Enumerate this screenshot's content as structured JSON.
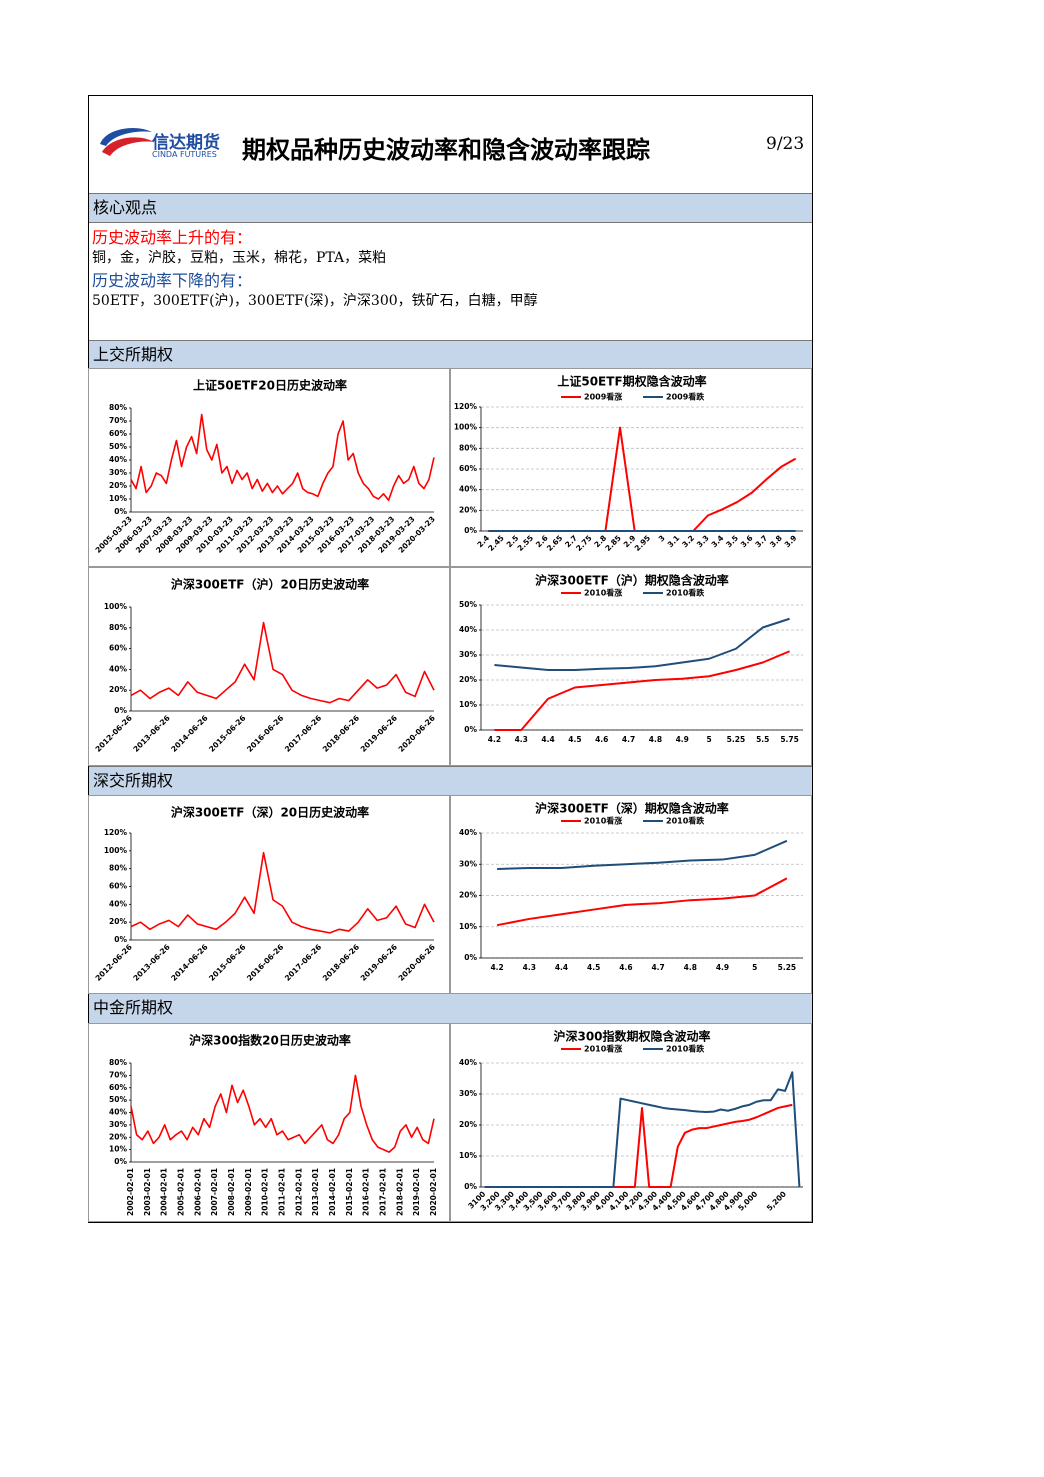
{
  "header": {
    "logo_cn": "信达期货",
    "logo_en": "CINDA FUTURES",
    "title": "期权品种历史波动率和隐含波动率跟踪",
    "page": "9/23"
  },
  "core": {
    "heading": "核心观点",
    "up_label": "历史波动率上升的有：",
    "up_items": "铜，金，沪胶，豆粕，玉米，棉花，PTA，菜粕",
    "down_label": "历史波动率下降的有：",
    "down_items": "50ETF，300ETF(沪)，300ETF(深)，沪深300，铁矿石，白糖，甲醇"
  },
  "sections": [
    "上交所期权",
    "深交所期权",
    "中金所期权"
  ],
  "chart_data": [
    {
      "type": "line",
      "title": "上证50ETF20日历史波动率",
      "color": "#ff0000",
      "categories": [
        "2005-03-23",
        null,
        null,
        null,
        "2006-03-23",
        null,
        null,
        null,
        "2007-03-23",
        null,
        null,
        null,
        "2008-03-23",
        null,
        null,
        null,
        "2009-03-23",
        null,
        null,
        null,
        "2010-03-23",
        null,
        null,
        null,
        "2011-03-23",
        null,
        null,
        null,
        "2012-03-23",
        null,
        null,
        null,
        "2013-03-23",
        null,
        null,
        null,
        "2014-03-23",
        null,
        null,
        null,
        "2015-03-23",
        null,
        null,
        null,
        "2016-03-23",
        null,
        null,
        null,
        "2017-03-23",
        null,
        null,
        null,
        "2018-03-23",
        null,
        null,
        null,
        "2019-03-23",
        null,
        null,
        null,
        "2020-03-23"
      ],
      "values": [
        25,
        18,
        35,
        15,
        20,
        30,
        28,
        22,
        40,
        55,
        35,
        50,
        58,
        45,
        75,
        48,
        40,
        52,
        30,
        35,
        22,
        32,
        25,
        30,
        18,
        25,
        16,
        22,
        15,
        20,
        14,
        18,
        22,
        30,
        18,
        15,
        14,
        12,
        22,
        30,
        35,
        60,
        70,
        40,
        45,
        30,
        22,
        18,
        12,
        10,
        14,
        9,
        20,
        28,
        22,
        25,
        35,
        22,
        18,
        25,
        42
      ],
      "ylim": [
        0,
        80
      ],
      "yticks": [
        {
          "value": 0,
          "label": "0%"
        },
        {
          "value": 10,
          "label": "10%"
        },
        {
          "value": 20,
          "label": "20%"
        },
        {
          "value": 30,
          "label": "30%"
        },
        {
          "value": 40,
          "label": "40%"
        },
        {
          "value": 50,
          "label": "50%"
        },
        {
          "value": 60,
          "label": "60%"
        },
        {
          "value": 70,
          "label": "70%"
        },
        {
          "value": 80,
          "label": "80%"
        }
      ],
      "grid": false
    },
    {
      "type": "line",
      "title": "上证50ETF期权隐含波动率",
      "categories": [
        "2.4",
        "2.45",
        "2.5",
        "2.55",
        "2.6",
        "2.65",
        "2.7",
        "2.75",
        "2.8",
        "2.85",
        "2.9",
        "2.95",
        "3",
        "3.1",
        "3.2",
        "3.3",
        "3.4",
        "3.5",
        "3.6",
        "3.7",
        "3.8",
        "3.9"
      ],
      "series": [
        {
          "name": "2009看涨",
          "color": "#ff0000",
          "values": [
            0,
            0,
            0,
            0,
            0,
            0,
            0,
            0,
            0,
            100,
            0,
            0,
            0,
            0,
            0,
            15,
            21,
            28,
            37,
            50,
            62,
            70
          ]
        },
        {
          "name": "2009看跌",
          "color": "#1f4e79",
          "values": [
            0,
            0,
            0,
            0,
            0,
            0,
            0,
            0,
            0,
            0,
            0,
            0,
            0,
            0,
            0,
            0,
            0,
            0,
            0,
            0,
            0,
            0
          ]
        }
      ],
      "ylim": [
        0,
        120
      ],
      "yticks": [
        {
          "value": 0,
          "label": "0%"
        },
        {
          "value": 20,
          "label": "20%"
        },
        {
          "value": 40,
          "label": "40%"
        },
        {
          "value": 60,
          "label": "60%"
        },
        {
          "value": 80,
          "label": "80%"
        },
        {
          "value": 100,
          "label": "100%"
        },
        {
          "value": 120,
          "label": "120%"
        }
      ],
      "grid": true,
      "legend": "top"
    },
    {
      "type": "line",
      "title": "沪深300ETF（沪）20日历史波动率",
      "color": "#ff0000",
      "categories": [
        "2012-06-26",
        null,
        null,
        null,
        "2013-06-26",
        null,
        null,
        null,
        "2014-06-26",
        null,
        null,
        null,
        "2015-06-26",
        null,
        null,
        null,
        "2016-06-26",
        null,
        null,
        null,
        "2017-06-26",
        null,
        null,
        null,
        "2018-06-26",
        null,
        null,
        null,
        "2019-06-26",
        null,
        null,
        null,
        "2020-06-26"
      ],
      "values": [
        15,
        20,
        12,
        18,
        22,
        15,
        28,
        18,
        15,
        12,
        20,
        28,
        45,
        30,
        85,
        40,
        35,
        20,
        15,
        12,
        10,
        8,
        12,
        10,
        20,
        30,
        22,
        25,
        35,
        18,
        14,
        38,
        20
      ],
      "ylim": [
        0,
        100
      ],
      "yticks": [
        {
          "value": 0,
          "label": "0%"
        },
        {
          "value": 20,
          "label": "20%"
        },
        {
          "value": 40,
          "label": "40%"
        },
        {
          "value": 60,
          "label": "60%"
        },
        {
          "value": 80,
          "label": "80%"
        },
        {
          "value": 100,
          "label": "100%"
        }
      ],
      "grid": false
    },
    {
      "type": "line",
      "title": "沪深300ETF（沪）期权隐含波动率",
      "categories": [
        "4.2",
        "4.3",
        "4.4",
        "4.5",
        "4.6",
        "4.7",
        "4.8",
        "4.9",
        "5",
        "5.25",
        "5.5",
        "5.75"
      ],
      "series": [
        {
          "name": "2010看涨",
          "color": "#ff0000",
          "values": [
            0,
            0,
            12.5,
            17,
            18,
            19,
            20,
            20.5,
            21.5,
            24,
            27,
            31.5
          ]
        },
        {
          "name": "2010看跌",
          "color": "#1f4e79",
          "values": [
            26,
            25,
            24,
            24,
            24.5,
            24.8,
            25.5,
            27,
            28.5,
            32.5,
            41,
            44.5
          ]
        }
      ],
      "ylim": [
        0,
        50
      ],
      "yticks": [
        {
          "value": 0,
          "label": "0%"
        },
        {
          "value": 10,
          "label": "10%"
        },
        {
          "value": 20,
          "label": "20%"
        },
        {
          "value": 30,
          "label": "30%"
        },
        {
          "value": 40,
          "label": "40%"
        },
        {
          "value": 50,
          "label": "50%"
        }
      ],
      "grid": true,
      "legend": "top"
    },
    {
      "type": "line",
      "title": "沪深300ETF（深）20日历史波动率",
      "color": "#ff0000",
      "categories": [
        "2012-06-26",
        null,
        null,
        null,
        "2013-06-26",
        null,
        null,
        null,
        "2014-06-26",
        null,
        null,
        null,
        "2015-06-26",
        null,
        null,
        null,
        "2016-06-26",
        null,
        null,
        null,
        "2017-06-26",
        null,
        null,
        null,
        "2018-06-26",
        null,
        null,
        null,
        "2019-06-26",
        null,
        null,
        null,
        "2020-06-26"
      ],
      "values": [
        15,
        20,
        12,
        18,
        22,
        15,
        28,
        18,
        15,
        12,
        20,
        30,
        48,
        30,
        98,
        45,
        38,
        20,
        15,
        12,
        10,
        8,
        12,
        10,
        20,
        35,
        22,
        25,
        38,
        18,
        14,
        40,
        20
      ],
      "ylim": [
        0,
        120
      ],
      "yticks": [
        {
          "value": 0,
          "label": "0%"
        },
        {
          "value": 20,
          "label": "20%"
        },
        {
          "value": 40,
          "label": "40%"
        },
        {
          "value": 60,
          "label": "60%"
        },
        {
          "value": 80,
          "label": "80%"
        },
        {
          "value": 100,
          "label": "100%"
        },
        {
          "value": 120,
          "label": "120%"
        }
      ],
      "grid": false
    },
    {
      "type": "line",
      "title": "沪深300ETF（深）期权隐含波动率",
      "categories": [
        "4.2",
        "4.3",
        "4.4",
        "4.5",
        "4.6",
        "4.7",
        "4.8",
        "4.9",
        "5",
        "5.25"
      ],
      "series": [
        {
          "name": "2010看涨",
          "color": "#ff0000",
          "values": [
            10.5,
            12.5,
            14,
            15.5,
            17,
            17.5,
            18.5,
            19,
            20,
            25.5
          ]
        },
        {
          "name": "2010看跌",
          "color": "#1f4e79",
          "values": [
            28.5,
            28.8,
            28.8,
            29.5,
            30,
            30.5,
            31.2,
            31.5,
            33,
            37.5
          ]
        }
      ],
      "ylim": [
        0,
        40
      ],
      "yticks": [
        {
          "value": 0,
          "label": "0%"
        },
        {
          "value": 10,
          "label": "10%"
        },
        {
          "value": 20,
          "label": "20%"
        },
        {
          "value": 30,
          "label": "30%"
        },
        {
          "value": 40,
          "label": "40%"
        }
      ],
      "grid": true,
      "legend": "top"
    },
    {
      "type": "line",
      "title": "沪深300指数20日历史波动率",
      "color": "#ff0000",
      "categories": [
        "2002-02-01",
        null,
        null,
        "2003-02-01",
        null,
        null,
        "2004-02-01",
        null,
        null,
        "2005-02-01",
        null,
        null,
        "2006-02-01",
        null,
        null,
        "2007-02-01",
        null,
        null,
        "2008-02-01",
        null,
        null,
        "2009-02-01",
        null,
        null,
        "2010-02-01",
        null,
        null,
        "2011-02-01",
        null,
        null,
        "2012-02-01",
        null,
        null,
        "2013-02-01",
        null,
        null,
        "2014-02-01",
        null,
        null,
        "2015-02-01",
        null,
        null,
        "2016-02-01",
        null,
        null,
        "2017-02-01",
        null,
        null,
        "2018-02-01",
        null,
        null,
        "2019-02-01",
        null,
        null,
        "2020-02-01"
      ],
      "values": [
        45,
        22,
        18,
        25,
        15,
        20,
        30,
        18,
        22,
        25,
        18,
        28,
        22,
        35,
        28,
        45,
        55,
        40,
        62,
        48,
        58,
        45,
        30,
        35,
        28,
        35,
        22,
        25,
        18,
        20,
        22,
        15,
        20,
        25,
        30,
        18,
        15,
        22,
        35,
        40,
        70,
        45,
        30,
        18,
        12,
        10,
        8,
        12,
        25,
        30,
        20,
        28,
        18,
        15,
        35
      ],
      "ylim": [
        0,
        80
      ],
      "yticks": [
        {
          "value": 0,
          "label": "0%"
        },
        {
          "value": 10,
          "label": "10%"
        },
        {
          "value": 20,
          "label": "20%"
        },
        {
          "value": 30,
          "label": "30%"
        },
        {
          "value": 40,
          "label": "40%"
        },
        {
          "value": 50,
          "label": "50%"
        },
        {
          "value": 60,
          "label": "60%"
        },
        {
          "value": 70,
          "label": "70%"
        },
        {
          "value": 80,
          "label": "80%"
        }
      ],
      "grid": false
    },
    {
      "type": "line",
      "title": "沪深300指数期权隐含波动率",
      "categories": [
        "3100",
        null,
        "3,200",
        null,
        "3,300",
        null,
        "3,400",
        null,
        "3,500",
        null,
        "3,600",
        null,
        "3,700",
        null,
        "3,800",
        null,
        "3,900",
        null,
        "4,000",
        null,
        "4,100",
        null,
        "4,200",
        null,
        "4,300",
        null,
        "4,400",
        null,
        "4,500",
        null,
        "4,600",
        null,
        "4,700",
        null,
        "4,800",
        null,
        "4,900",
        null,
        "5,000",
        null,
        null,
        null,
        "5,200",
        null,
        null
      ],
      "series": [
        {
          "name": "2010看涨",
          "color": "#ff0000",
          "values": [
            0,
            0,
            0,
            0,
            0,
            0,
            0,
            0,
            0,
            0,
            0,
            0,
            0,
            0,
            0,
            0,
            0,
            0,
            0,
            0,
            0,
            0,
            25.5,
            0,
            0,
            0,
            0,
            13,
            17.5,
            18.5,
            19,
            19,
            19.5,
            20,
            20.5,
            21,
            21.3,
            21.7,
            22.5,
            23.5,
            24.5,
            25.5,
            26,
            26.5,
            null
          ]
        },
        {
          "name": "2010看跌",
          "color": "#1f4e79",
          "values": [
            0,
            0,
            0,
            0,
            0,
            0,
            0,
            0,
            0,
            0,
            0,
            0,
            0,
            0,
            0,
            0,
            0,
            0,
            0,
            28.5,
            28,
            27.5,
            27,
            26.5,
            26,
            25.5,
            25.2,
            25,
            24.8,
            24.5,
            24.3,
            24.2,
            24.3,
            25,
            24.6,
            25.2,
            26,
            26.5,
            27.5,
            28,
            28,
            31.5,
            31,
            37,
            0
          ]
        }
      ],
      "ylim": [
        0,
        40
      ],
      "yticks": [
        {
          "value": 0,
          "label": "0%"
        },
        {
          "value": 10,
          "label": "10%"
        },
        {
          "value": 20,
          "label": "20%"
        },
        {
          "value": 30,
          "label": "30%"
        },
        {
          "value": 40,
          "label": "40%"
        }
      ],
      "grid": true,
      "legend": "top"
    }
  ]
}
